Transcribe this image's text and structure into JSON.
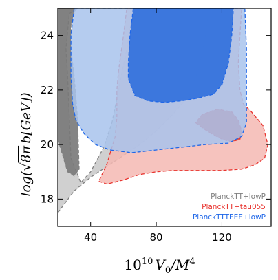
{
  "chart_data": {
    "type": "contour",
    "title": "",
    "xlabel": "10^{10} V_0 / M^4",
    "xlabel_parts": {
      "pre": "10",
      "sup": "10",
      "mid": "V",
      "sub": "0",
      "post": "/M",
      "sup2": "4"
    },
    "ylabel": "log(√8π b [GeV])",
    "ylabel_parts": {
      "pre": "log(",
      "sqrt": "8π",
      "mid": "b[GeV]",
      "post": ")"
    },
    "xlim": [
      20,
      150
    ],
    "ylim": [
      17,
      25
    ],
    "xticks": [
      40,
      80,
      120
    ],
    "yticks": [
      18,
      20,
      22,
      24
    ],
    "grid": false,
    "legend": {
      "placement": "bottom-right"
    },
    "series": [
      {
        "name": "PlanckTT+lowP",
        "color": "#808080",
        "outer_fill": "#c8c8c8",
        "inner_fill": "#787878",
        "line_style": "dashed",
        "outer": [
          [
            20,
            17.5
          ],
          [
            30,
            18.3
          ],
          [
            40,
            18.8
          ],
          [
            50,
            19.2
          ],
          [
            60,
            19.6
          ],
          [
            70,
            20.0
          ],
          [
            80,
            20.5
          ],
          [
            90,
            21.1
          ],
          [
            100,
            21.8
          ],
          [
            106,
            22.8
          ],
          [
            110,
            24.0
          ],
          [
            112,
            25.0
          ],
          [
            66,
            25.0
          ],
          [
            62,
            23.5
          ],
          [
            57,
            22.0
          ],
          [
            53,
            20.8
          ],
          [
            48,
            19.9
          ],
          [
            40,
            19.0
          ],
          [
            34,
            18.6
          ],
          [
            28,
            19.5
          ],
          [
            27,
            21.0
          ],
          [
            26,
            22.5
          ],
          [
            25,
            23.5
          ],
          [
            27,
            24.8
          ],
          [
            32,
            25.0
          ],
          [
            20,
            25.0
          ]
        ],
        "inner": [
          [
            20,
            20.2
          ],
          [
            26,
            19.0
          ],
          [
            30,
            18.85
          ],
          [
            33,
            19.1
          ],
          [
            32,
            21.0
          ],
          [
            30,
            22.5
          ],
          [
            28,
            23.5
          ],
          [
            28,
            24.4
          ],
          [
            31,
            25.0
          ],
          [
            20,
            25.0
          ]
        ]
      },
      {
        "name": "PlanckTT+tau055",
        "color": "#e8342f",
        "outer_fill": "#f5b8b3",
        "inner_fill": "#e0483b",
        "line_style": "dashed",
        "outer": [
          [
            45,
            18.65
          ],
          [
            50,
            18.55
          ],
          [
            60,
            18.7
          ],
          [
            70,
            18.9
          ],
          [
            80,
            19.0
          ],
          [
            90,
            19.05
          ],
          [
            100,
            19.05
          ],
          [
            110,
            19.05
          ],
          [
            120,
            19.05
          ],
          [
            132,
            19.1
          ],
          [
            140,
            19.25
          ],
          [
            146,
            19.5
          ],
          [
            148,
            20.0
          ],
          [
            145,
            20.7
          ],
          [
            138,
            21.2
          ],
          [
            133,
            21.5
          ],
          [
            131,
            22.0
          ],
          [
            130,
            23.0
          ],
          [
            131,
            24.0
          ],
          [
            132,
            25.0
          ],
          [
            62,
            25.0
          ],
          [
            60,
            24.0
          ],
          [
            57,
            22.7
          ],
          [
            56,
            22.0
          ],
          [
            56,
            21.0
          ],
          [
            55,
            20.3
          ],
          [
            50,
            19.3
          ]
        ],
        "inner": [
          [
            104,
            20.8
          ],
          [
            112,
            20.45
          ],
          [
            120,
            20.2
          ],
          [
            126,
            20.1
          ],
          [
            131,
            20.2
          ],
          [
            132,
            20.5
          ],
          [
            130,
            20.9
          ],
          [
            126,
            21.2
          ],
          [
            117,
            21.3
          ],
          [
            108,
            21.1
          ]
        ]
      },
      {
        "name": "PlanckTTTEEE+lowP",
        "color": "#1f67e8",
        "outer_fill": "#a8c3ec",
        "inner_fill": "#2f6fdc",
        "line_style": "dashed",
        "outer": [
          [
            30,
            25.0
          ],
          [
            28,
            24.0
          ],
          [
            28,
            22.5
          ],
          [
            29,
            21.5
          ],
          [
            31,
            20.9
          ],
          [
            36,
            20.4
          ],
          [
            43,
            20.0
          ],
          [
            52,
            19.8
          ],
          [
            65,
            19.7
          ],
          [
            80,
            19.8
          ],
          [
            95,
            19.9
          ],
          [
            110,
            20.0
          ],
          [
            124,
            20.05
          ],
          [
            132,
            20.3
          ],
          [
            135,
            20.8
          ],
          [
            135,
            22.0
          ],
          [
            135,
            23.5
          ],
          [
            134,
            25.0
          ]
        ],
        "inner": [
          [
            66,
            25.0
          ],
          [
            64,
            24.0
          ],
          [
            63,
            23.0
          ],
          [
            63,
            22.4
          ],
          [
            67,
            21.8
          ],
          [
            75,
            21.6
          ],
          [
            85,
            21.55
          ],
          [
            95,
            21.6
          ],
          [
            105,
            21.7
          ],
          [
            115,
            21.85
          ],
          [
            120,
            22.2
          ],
          [
            124,
            23.0
          ],
          [
            126,
            24.0
          ],
          [
            127,
            25.0
          ]
        ]
      }
    ]
  }
}
